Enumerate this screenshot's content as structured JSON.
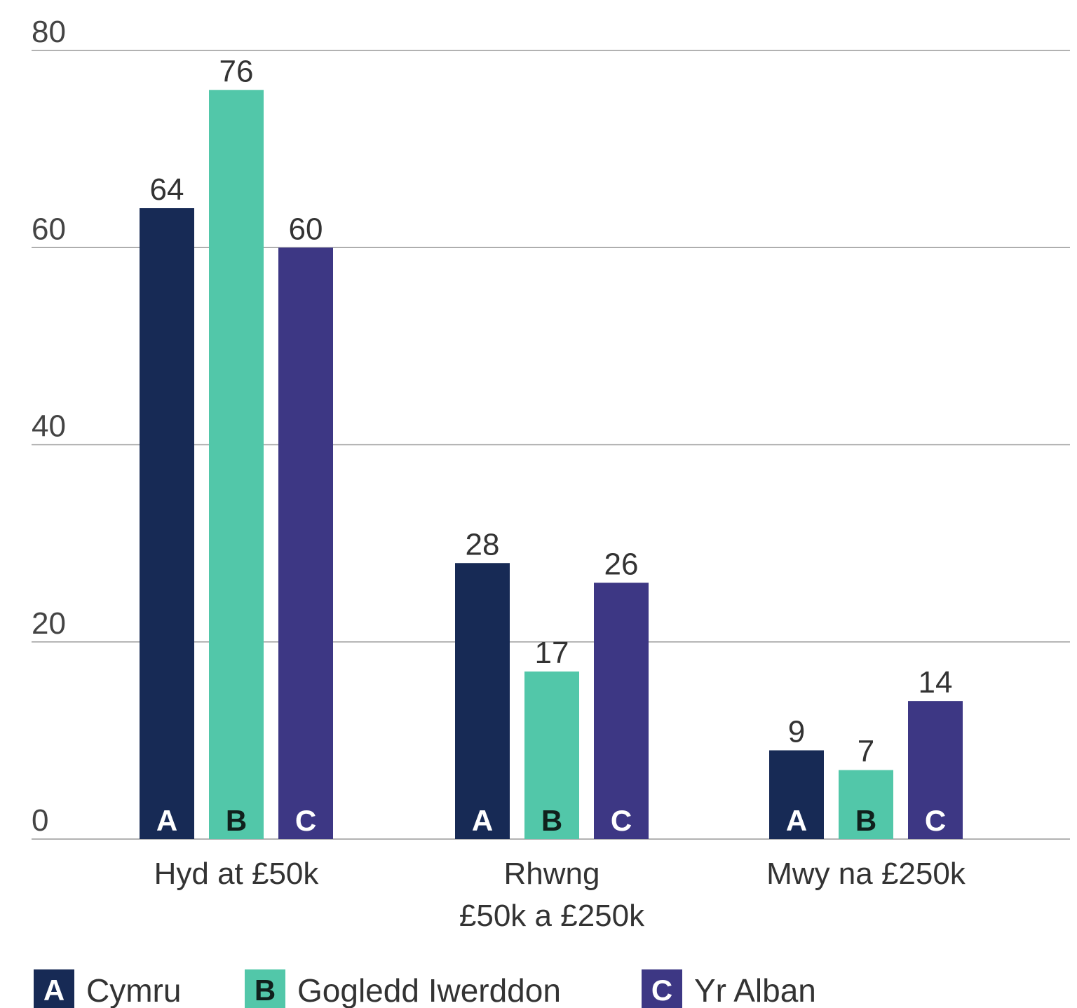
{
  "chart_data": {
    "type": "bar",
    "categories": [
      "Hyd at £50k",
      "Rhwng\n£50k a £250k",
      "Mwy na £250k"
    ],
    "series": [
      {
        "name": "Cymru",
        "key": "A",
        "color": "#172a55",
        "key_color": "#ffffff",
        "values": [
          64,
          28,
          9
        ]
      },
      {
        "name": "Gogledd Iwerddon",
        "key": "B",
        "color": "#52c7a9",
        "key_color": "#10201c",
        "values": [
          76,
          17,
          7
        ]
      },
      {
        "name": "Yr Alban",
        "key": "C",
        "color": "#3d3784",
        "key_color": "#ffffff",
        "values": [
          60,
          26,
          14
        ]
      }
    ],
    "ylim": [
      0,
      80
    ],
    "yticks": [
      0,
      20,
      40,
      60,
      80
    ],
    "grid": true,
    "legend": "bottom"
  }
}
